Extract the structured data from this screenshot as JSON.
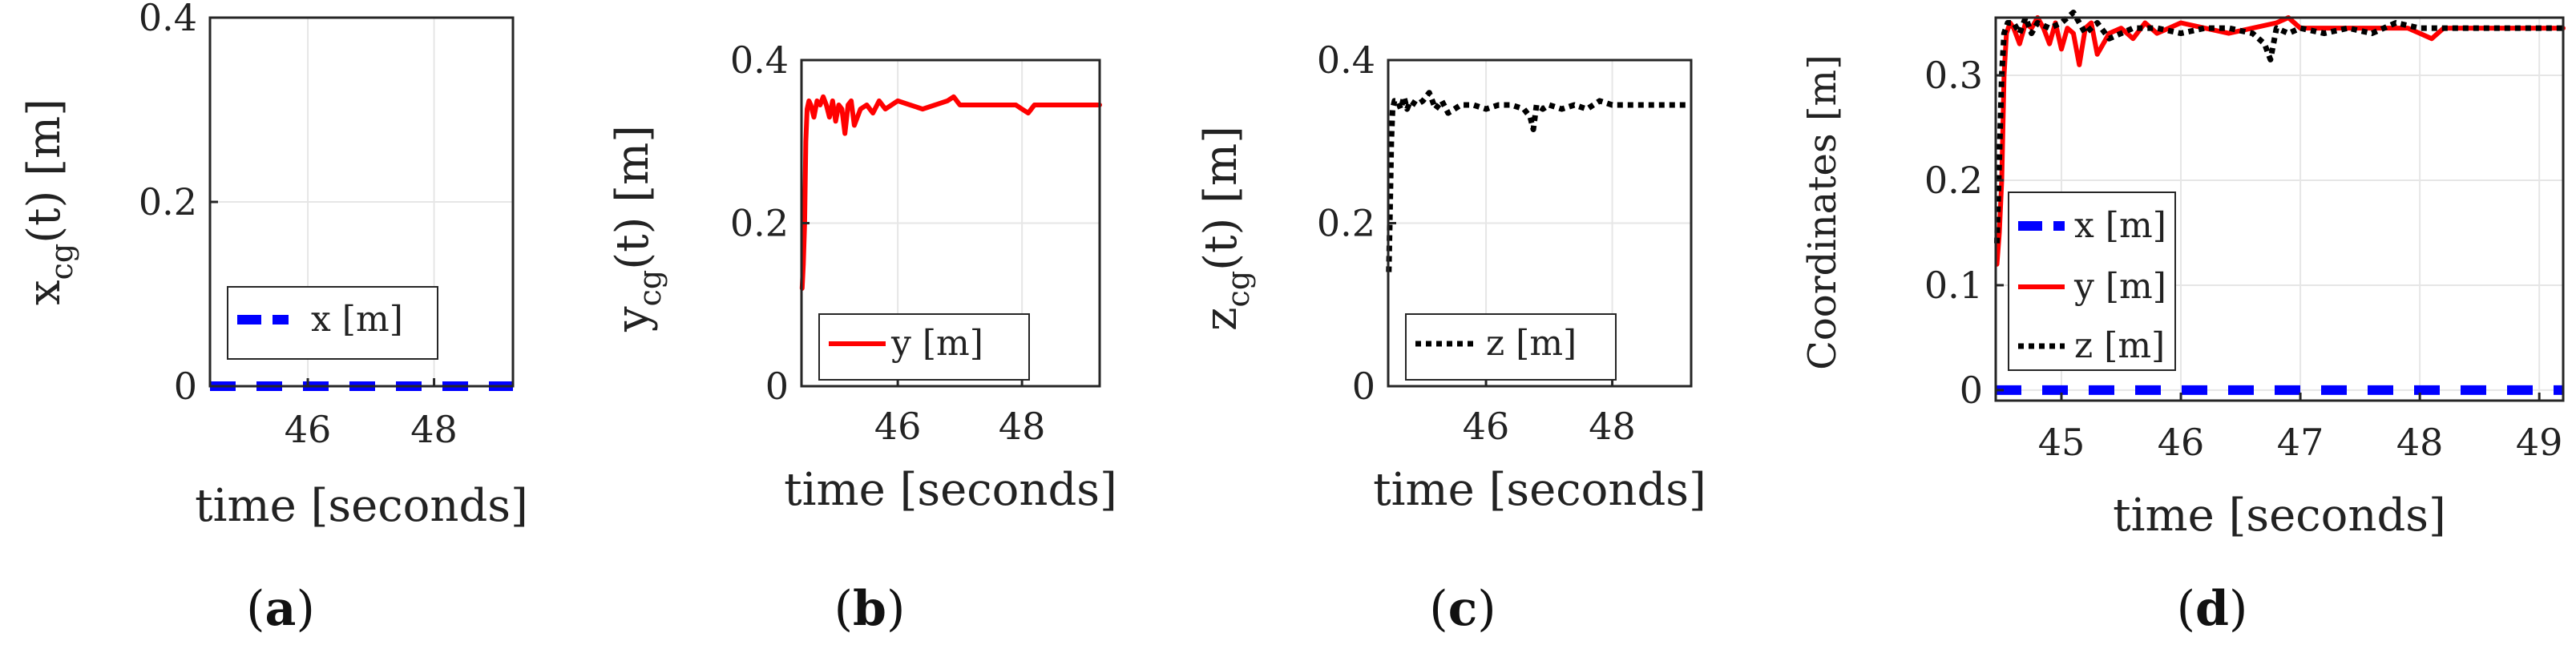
{
  "colors": {
    "x": "#0000ff",
    "y": "#ff0000",
    "z": "#000000",
    "grid": "#e6e6e6",
    "axis": "#262626"
  },
  "chart_data": [
    {
      "id": "a",
      "type": "line",
      "panel_label": "a",
      "ylabel": "x",
      "ylabel_sub": "cg",
      "ylabel_tail": "(t) [m]",
      "xlabel": "time [seconds]",
      "xlim": [
        44.45,
        49.25
      ],
      "ylim": [
        0,
        0.4
      ],
      "xticks": [
        46,
        48
      ],
      "xtick_labels": [
        "46",
        "48"
      ],
      "yticks": [
        0,
        0.2,
        0.4
      ],
      "ytick_labels": [
        "0",
        "0.2",
        "0.4"
      ],
      "grid": true,
      "legend_position": "lower-right",
      "series": [
        {
          "name": "x [m]",
          "style": "dashed",
          "color_key": "x",
          "kind": "x",
          "x": [
            44.45,
            49.25
          ],
          "values": [
            0,
            0
          ]
        }
      ]
    },
    {
      "id": "b",
      "type": "line",
      "panel_label": "b",
      "ylabel": "y",
      "ylabel_sub": "cg",
      "ylabel_tail": "(t) [m]",
      "xlabel": "time [seconds]",
      "xlim": [
        44.45,
        49.25
      ],
      "ylim": [
        0,
        0.4
      ],
      "xticks": [
        46,
        48
      ],
      "xtick_labels": [
        "46",
        "48"
      ],
      "yticks": [
        0,
        0.2,
        0.4
      ],
      "ytick_labels": [
        "0",
        "0.2",
        "0.4"
      ],
      "grid": true,
      "legend_position": "lower-right",
      "series": [
        {
          "name": "y [m]",
          "style": "solid",
          "color_key": "y",
          "kind": "y"
        }
      ]
    },
    {
      "id": "c",
      "type": "line",
      "panel_label": "c",
      "ylabel": "z",
      "ylabel_sub": "cg",
      "ylabel_tail": "(t) [m]",
      "xlabel": "time [seconds]",
      "xlim": [
        44.45,
        49.25
      ],
      "ylim": [
        0,
        0.4
      ],
      "xticks": [
        46,
        48
      ],
      "xtick_labels": [
        "46",
        "48"
      ],
      "yticks": [
        0,
        0.2,
        0.4
      ],
      "ytick_labels": [
        "0",
        "0.2",
        "0.4"
      ],
      "grid": true,
      "legend_position": "lower-right",
      "series": [
        {
          "name": "z [m]",
          "style": "dotted",
          "color_key": "z",
          "kind": "z"
        }
      ]
    },
    {
      "id": "d",
      "type": "line",
      "panel_label": "d",
      "ylabel": "Coordinates [m]",
      "xlabel": "time [seconds]",
      "xlim": [
        44.45,
        49.2
      ],
      "ylim": [
        -0.01,
        0.355
      ],
      "xticks": [
        45,
        46,
        47,
        48,
        49
      ],
      "xtick_labels": [
        "45",
        "46",
        "47",
        "48",
        "49"
      ],
      "yticks": [
        0,
        0.1,
        0.2,
        0.3
      ],
      "ytick_labels": [
        "0",
        "0.1",
        "0.2",
        "0.3"
      ],
      "grid": true,
      "legend_position": "lower-left",
      "series": [
        {
          "name": "x [m]",
          "style": "dashed",
          "color_key": "x",
          "kind": "x",
          "x": [
            44.45,
            49.2
          ],
          "values": [
            0,
            0
          ]
        },
        {
          "name": "y [m]",
          "style": "solid",
          "color_key": "y",
          "kind": "y"
        },
        {
          "name": "z [m]",
          "style": "dotted",
          "color_key": "z",
          "kind": "z"
        }
      ]
    }
  ],
  "traces": {
    "y": {
      "x": [
        44.46,
        44.48,
        44.5,
        44.52,
        44.54,
        44.57,
        44.6,
        44.65,
        44.7,
        44.75,
        44.8,
        44.85,
        44.9,
        44.95,
        45.0,
        45.05,
        45.1,
        45.15,
        45.2,
        45.25,
        45.3,
        45.4,
        45.5,
        45.6,
        45.7,
        45.8,
        45.9,
        46.0,
        46.2,
        46.4,
        46.6,
        46.8,
        46.9,
        47.0,
        47.2,
        47.4,
        47.6,
        47.8,
        47.9,
        48.0,
        48.1,
        48.2,
        48.4,
        48.6,
        48.8,
        49.0,
        49.2,
        49.25
      ],
      "values": [
        0.12,
        0.15,
        0.2,
        0.3,
        0.34,
        0.35,
        0.345,
        0.33,
        0.35,
        0.345,
        0.355,
        0.345,
        0.33,
        0.35,
        0.325,
        0.345,
        0.34,
        0.31,
        0.345,
        0.35,
        0.32,
        0.34,
        0.345,
        0.335,
        0.35,
        0.34,
        0.345,
        0.35,
        0.345,
        0.34,
        0.345,
        0.35,
        0.355,
        0.345,
        0.345,
        0.345,
        0.345,
        0.345,
        0.345,
        0.34,
        0.335,
        0.345,
        0.345,
        0.345,
        0.345,
        0.345,
        0.345,
        0.345
      ]
    },
    "z": {
      "x": [
        44.46,
        44.48,
        44.5,
        44.52,
        44.55,
        44.6,
        44.65,
        44.7,
        44.75,
        44.8,
        44.9,
        45.0,
        45.1,
        45.2,
        45.3,
        45.4,
        45.6,
        45.8,
        46.0,
        46.2,
        46.4,
        46.6,
        46.7,
        46.75,
        46.8,
        46.9,
        47.0,
        47.2,
        47.4,
        47.6,
        47.8,
        48.0,
        48.2,
        48.4,
        48.6,
        48.8,
        49.0,
        49.25
      ],
      "values": [
        0.14,
        0.22,
        0.3,
        0.34,
        0.35,
        0.35,
        0.34,
        0.355,
        0.34,
        0.35,
        0.345,
        0.35,
        0.36,
        0.34,
        0.35,
        0.335,
        0.345,
        0.345,
        0.34,
        0.345,
        0.345,
        0.34,
        0.33,
        0.315,
        0.345,
        0.34,
        0.345,
        0.34,
        0.345,
        0.34,
        0.35,
        0.345,
        0.345,
        0.345,
        0.345,
        0.345,
        0.345,
        0.345
      ]
    }
  }
}
